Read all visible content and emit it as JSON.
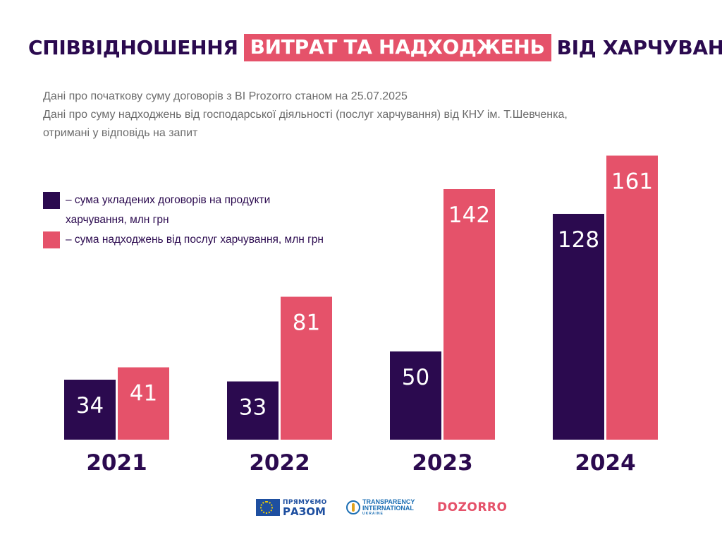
{
  "title": {
    "part1": "СПІВВІДНОШЕННЯ",
    "highlight": "ВИТРАТ ТА НАДХОДЖЕНЬ",
    "part2": "ВІД ХАРЧУВАННЯ"
  },
  "subtitle": {
    "line1": "Дані про початкову суму договорів з ВІ Prozorro станом на 25.07.2025",
    "line2": "Дані про суму надходжень від господарської діяльності (послуг харчування) від КНУ ім. Т.Шевченка,",
    "line3": "отримані у відповідь на запит"
  },
  "colors": {
    "dark": "#2b0a4f",
    "pink": "#e5526a",
    "subtitle": "#6b6b6b"
  },
  "chart_data": {
    "type": "bar",
    "categories": [
      "2021",
      "2022",
      "2023",
      "2024"
    ],
    "series": [
      {
        "name": "– сума укладених договорів на продукти харчування, млн грн",
        "color": "#2b0a4f",
        "values": [
          34,
          33,
          50,
          128
        ]
      },
      {
        "name": "– сума надходжень від послуг харчування, млн грн",
        "color": "#e5526a",
        "values": [
          41,
          81,
          142,
          161
        ]
      }
    ],
    "title": "СПІВВІДНОШЕННЯ ВИТРАТ ТА НАДХОДЖЕНЬ ВІД ХАРЧУВАННЯ",
    "xlabel": "",
    "ylabel": "",
    "grid": false,
    "legend": "left"
  },
  "logos": [
    {
      "name": "eu-flag",
      "text_top": "ПРЯМУЄМО",
      "text_bottom": "РАЗОМ"
    },
    {
      "name": "transparency-international",
      "text_top": "TRANSPARENCY",
      "text_mid": "INTERNATIONAL",
      "text_bottom": "UKRAINE"
    },
    {
      "name": "dozorro",
      "text": "DOZORRO"
    }
  ]
}
